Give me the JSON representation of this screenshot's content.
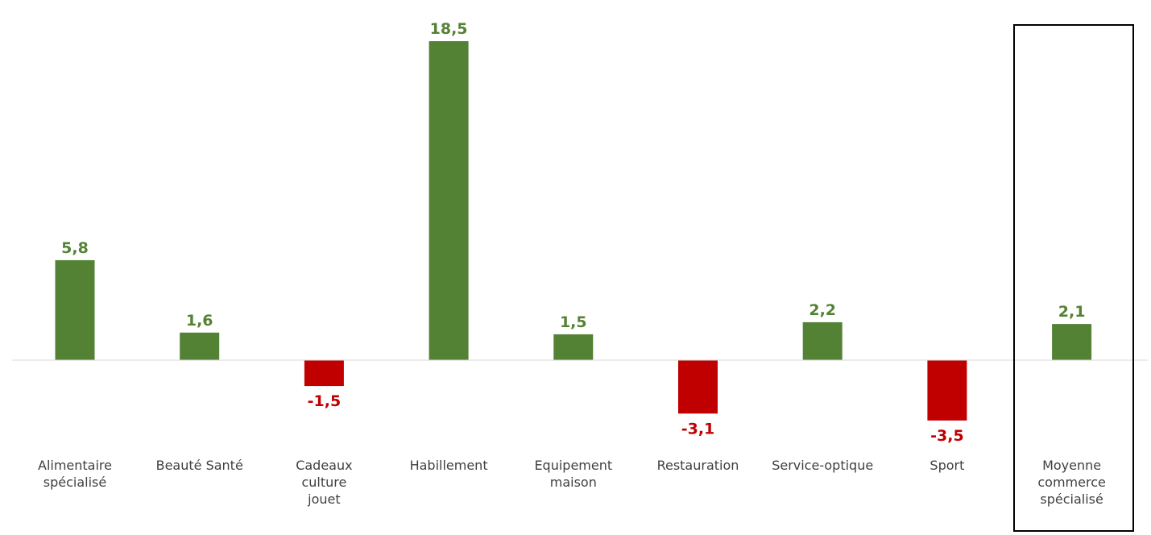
{
  "chart_data": {
    "type": "bar",
    "categories": [
      "Alimentaire spécialisé",
      "Beauté Santé",
      "Cadeaux culture jouet",
      "Habillement",
      "Equipement maison",
      "Restauration",
      "Service-optique",
      "Sport",
      "Moyenne commerce spécialisé"
    ],
    "category_lines": [
      [
        "Alimentaire",
        "spécialisé"
      ],
      [
        "Beauté Santé"
      ],
      [
        "Cadeaux",
        "culture",
        "jouet"
      ],
      [
        "Habillement"
      ],
      [
        "Equipement",
        "maison"
      ],
      [
        "Restauration"
      ],
      [
        "Service-optique"
      ],
      [
        "Sport"
      ],
      [
        "Moyenne",
        "commerce",
        "spécialisé"
      ]
    ],
    "values": [
      5.8,
      1.6,
      -1.5,
      18.5,
      1.5,
      -3.1,
      2.2,
      -3.5,
      2.1
    ],
    "value_labels": [
      "5,8",
      "1,6",
      "-1,5",
      "18,5",
      "1,5",
      "-3,1",
      "2,2",
      "-3,5",
      "2,1"
    ],
    "title": "",
    "xlabel": "",
    "ylabel": "",
    "ylim": [
      -5.1,
      20.0
    ],
    "grid": false,
    "highlighted_category": "Moyenne commerce spécialisé",
    "colors": {
      "positive": "#548235",
      "negative": "#C00000",
      "axis": "#d9d9d9",
      "highlight_box": "#000000",
      "category_text": "#404040"
    }
  }
}
